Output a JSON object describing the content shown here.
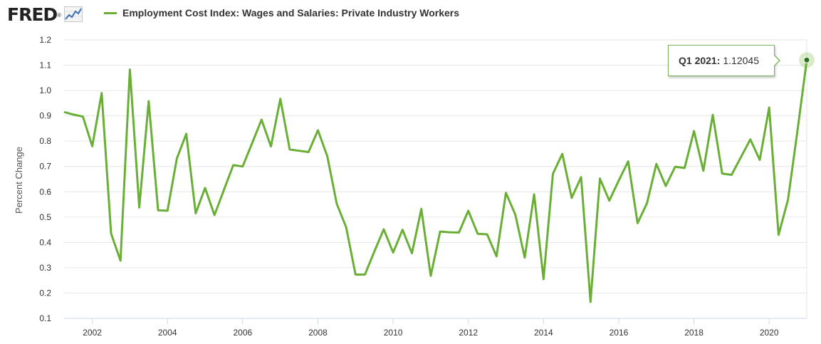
{
  "header": {
    "logo_text": "FRED",
    "logo_mark": "®"
  },
  "colors": {
    "series": "#6aaf35",
    "grid": "#e6e6e6",
    "axis": "#ccd6eb"
  },
  "icons": {
    "logo_graph": "line-graph-icon"
  },
  "tooltip": {
    "label": "Q1 2021:",
    "value": "1.12045"
  },
  "chart_data": {
    "type": "line",
    "title": "",
    "legend_position": "top-left",
    "xlabel": "",
    "ylabel": "Percent Change",
    "ylim": [
      0.1,
      1.2
    ],
    "yticks": [
      0.1,
      0.2,
      0.3,
      0.4,
      0.5,
      0.6,
      0.7,
      0.8,
      0.9,
      1.0,
      1.1,
      1.2
    ],
    "xlim": [
      2001.25,
      2021.0
    ],
    "xticks": [
      2002,
      2004,
      2006,
      2008,
      2010,
      2012,
      2014,
      2016,
      2018,
      2020
    ],
    "grid": true,
    "series": [
      {
        "name": "Employment Cost Index: Wages and Salaries: Private Industry Workers",
        "x": [
          2001.25,
          2001.5,
          2001.75,
          2002.0,
          2002.25,
          2002.5,
          2002.75,
          2003.0,
          2003.25,
          2003.5,
          2003.75,
          2004.0,
          2004.25,
          2004.5,
          2004.75,
          2005.0,
          2005.25,
          2005.5,
          2005.75,
          2006.0,
          2006.25,
          2006.5,
          2006.75,
          2007.0,
          2007.25,
          2007.5,
          2007.75,
          2008.0,
          2008.25,
          2008.5,
          2008.75,
          2009.0,
          2009.25,
          2009.5,
          2009.75,
          2010.0,
          2010.25,
          2010.5,
          2010.75,
          2011.0,
          2011.25,
          2011.5,
          2011.75,
          2012.0,
          2012.25,
          2012.5,
          2012.75,
          2013.0,
          2013.25,
          2013.5,
          2013.75,
          2014.0,
          2014.25,
          2014.5,
          2014.75,
          2015.0,
          2015.25,
          2015.5,
          2015.75,
          2016.0,
          2016.25,
          2016.5,
          2016.75,
          2017.0,
          2017.25,
          2017.5,
          2017.75,
          2018.0,
          2018.25,
          2018.5,
          2018.75,
          2019.0,
          2019.25,
          2019.5,
          2019.75,
          2020.0,
          2020.25,
          2020.5,
          2020.75,
          2021.0
        ],
        "values": [
          0.915,
          0.905,
          0.897,
          0.78,
          0.99,
          0.435,
          0.328,
          1.083,
          0.538,
          0.958,
          0.527,
          0.525,
          0.732,
          0.829,
          0.515,
          0.615,
          0.508,
          0.607,
          0.705,
          0.7,
          0.792,
          0.885,
          0.779,
          0.967,
          0.767,
          0.762,
          0.757,
          0.843,
          0.74,
          0.553,
          0.46,
          0.273,
          0.273,
          0.364,
          0.452,
          0.36,
          0.45,
          0.357,
          0.532,
          0.268,
          0.443,
          0.44,
          0.439,
          0.525,
          0.434,
          0.432,
          0.345,
          0.596,
          0.51,
          0.34,
          0.59,
          0.255,
          0.671,
          0.75,
          0.576,
          0.658,
          0.165,
          0.652,
          0.565,
          0.644,
          0.72,
          0.476,
          0.555,
          0.71,
          0.623,
          0.699,
          0.694,
          0.84,
          0.683,
          0.904,
          0.672,
          0.667,
          0.737,
          0.807,
          0.726,
          0.933,
          0.43,
          0.568,
          0.838,
          1.12045
        ]
      }
    ]
  }
}
